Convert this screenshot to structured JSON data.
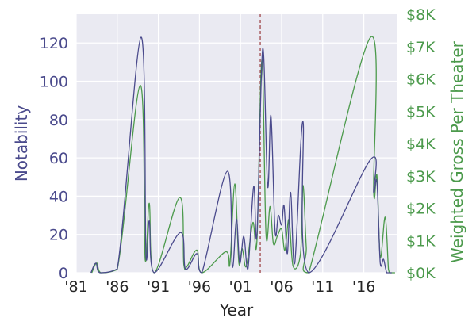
{
  "chart_data": {
    "type": "line",
    "xlabel": "Year",
    "ylabel": "Notability",
    "ylabel_right": "Weighted Gross Per Theater",
    "xlim": [
      1981,
      2020
    ],
    "ylim": [
      0,
      135
    ],
    "ylim_right": [
      0,
      8000
    ],
    "x_ticks": [
      1981,
      1986,
      1991,
      1996,
      2001,
      2006,
      2011,
      2016
    ],
    "x_tick_labels": [
      "'81",
      "'86",
      "'91",
      "'96",
      "'01",
      "'06",
      "'11",
      "'16"
    ],
    "y_ticks": [
      0,
      20,
      40,
      60,
      80,
      100,
      120
    ],
    "y_tick_labels": [
      "0",
      "20",
      "40",
      "60",
      "80",
      "100",
      "120"
    ],
    "y_ticks_right": [
      0,
      1000,
      2000,
      3000,
      4000,
      5000,
      6000,
      7000,
      8000
    ],
    "y_tick_labels_right": [
      "$0K",
      "$1K",
      "$2K",
      "$3K",
      "$4K",
      "$5K",
      "$6K",
      "$7K",
      "$8K"
    ],
    "grid": true,
    "vline_x": 2003.4,
    "series": [
      {
        "axis": "left",
        "color": "#4a4a8c",
        "points": [
          [
            1983.4,
            5
          ],
          [
            1983.9,
            0
          ],
          [
            1986,
            2
          ],
          [
            1988.9,
            123
          ],
          [
            1989.5,
            8
          ],
          [
            1989.9,
            27
          ],
          [
            1990.5,
            0
          ],
          [
            1993.7,
            21
          ],
          [
            1994.3,
            2
          ],
          [
            1995.7,
            10
          ],
          [
            1996.3,
            0
          ],
          [
            1999.4,
            53
          ],
          [
            2000,
            3
          ],
          [
            2000.5,
            28
          ],
          [
            2000.9,
            5
          ],
          [
            2001.4,
            19
          ],
          [
            2001.9,
            2
          ],
          [
            2002.6,
            45
          ],
          [
            2003,
            20
          ],
          [
            2003.7,
            117
          ],
          [
            2004.3,
            45
          ],
          [
            2004.7,
            82
          ],
          [
            2005.2,
            22
          ],
          [
            2005.6,
            30
          ],
          [
            2006,
            25
          ],
          [
            2006.3,
            35
          ],
          [
            2006.7,
            10
          ],
          [
            2007.1,
            42
          ],
          [
            2007.6,
            5
          ],
          [
            2008.6,
            79
          ],
          [
            2009.3,
            0
          ],
          [
            2016.8,
            59
          ],
          [
            2017.2,
            42
          ],
          [
            2017.6,
            47
          ],
          [
            2018,
            5
          ],
          [
            2018.4,
            7
          ],
          [
            2018.8,
            0
          ]
        ]
      },
      {
        "axis": "right",
        "color": "#4c9a4c",
        "points": [
          [
            1983.5,
            300
          ],
          [
            1984,
            0
          ],
          [
            1986,
            100
          ],
          [
            1988.8,
            5800
          ],
          [
            1989.4,
            400
          ],
          [
            1989.9,
            2150
          ],
          [
            1990.5,
            0
          ],
          [
            1993.6,
            2330
          ],
          [
            1994.1,
            250
          ],
          [
            1994.5,
            200
          ],
          [
            1995.7,
            700
          ],
          [
            1996.3,
            0
          ],
          [
            1999.2,
            650
          ],
          [
            1999.7,
            250
          ],
          [
            2000.3,
            2750
          ],
          [
            2000.8,
            300
          ],
          [
            2001.2,
            750
          ],
          [
            2001.7,
            200
          ],
          [
            2002.5,
            1550
          ],
          [
            2003,
            1000
          ],
          [
            2003.6,
            6600
          ],
          [
            2004.1,
            1200
          ],
          [
            2004.6,
            2050
          ],
          [
            2005,
            900
          ],
          [
            2005.5,
            1150
          ],
          [
            2006,
            1350
          ],
          [
            2006.4,
            700
          ],
          [
            2006.9,
            1650
          ],
          [
            2007.4,
            200
          ],
          [
            2008.3,
            600
          ],
          [
            2008.6,
            2700
          ],
          [
            2009,
            800
          ],
          [
            2009.3,
            0
          ],
          [
            2016.8,
            7280
          ],
          [
            2017.2,
            2500
          ],
          [
            2017.6,
            3000
          ],
          [
            2018,
            500
          ],
          [
            2018.6,
            1720
          ],
          [
            2019,
            100
          ],
          [
            2019.2,
            0
          ]
        ]
      }
    ]
  }
}
